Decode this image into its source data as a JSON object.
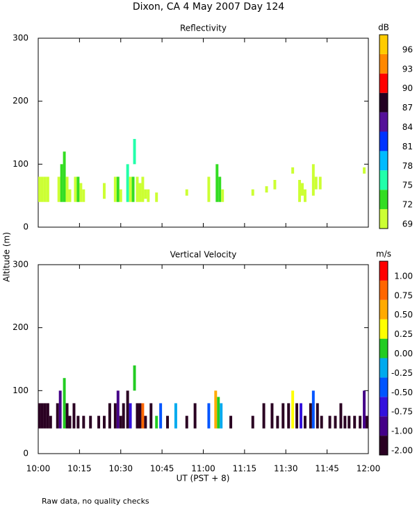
{
  "title": "Dixon, CA  4 May 2007  Day 124",
  "y_label": "Altitude (m)",
  "x_label": "UT  (PST + 8)",
  "note": "Raw data, no quality checks",
  "chart_data": [
    {
      "type": "time-height",
      "title": "Reflectivity",
      "colorbar_label": "dB",
      "colorbar_ticks": [
        69,
        72,
        75,
        78,
        81,
        84,
        87,
        90,
        93,
        96
      ],
      "colors": [
        "#ccff33",
        "#33dd22",
        "#22ffaa",
        "#00bbff",
        "#0033ff",
        "#551199",
        "#220022",
        "#ff0000",
        "#ff8800",
        "#ffcc00"
      ],
      "xlim": [
        0,
        120
      ],
      "xticks": [
        0,
        15,
        30,
        45,
        60,
        75,
        90,
        105,
        120
      ],
      "ylim": [
        0,
        300
      ],
      "yticks": [
        0,
        100,
        200,
        300
      ],
      "cells": [
        {
          "x": 0.5,
          "bottom": 40,
          "top": 80,
          "value": 70
        },
        {
          "x": 1.5,
          "bottom": 40,
          "top": 80,
          "value": 70
        },
        {
          "x": 2.5,
          "bottom": 40,
          "top": 80,
          "value": 71
        },
        {
          "x": 3.5,
          "bottom": 40,
          "top": 80,
          "value": 70
        },
        {
          "x": 7.5,
          "bottom": 40,
          "top": 80,
          "value": 70
        },
        {
          "x": 8.5,
          "bottom": 40,
          "top": 100,
          "value": 72
        },
        {
          "x": 9.5,
          "bottom": 40,
          "top": 120,
          "value": 73
        },
        {
          "x": 10.5,
          "bottom": 40,
          "top": 80,
          "value": 70
        },
        {
          "x": 11.5,
          "bottom": 40,
          "top": 60,
          "value": 70
        },
        {
          "x": 13.5,
          "bottom": 40,
          "top": 80,
          "value": 70
        },
        {
          "x": 14.5,
          "bottom": 40,
          "top": 80,
          "value": 72
        },
        {
          "x": 15.5,
          "bottom": 40,
          "top": 70,
          "value": 70
        },
        {
          "x": 16.5,
          "bottom": 40,
          "top": 60,
          "value": 70
        },
        {
          "x": 24,
          "bottom": 45,
          "top": 70,
          "value": 70
        },
        {
          "x": 28,
          "bottom": 40,
          "top": 80,
          "value": 71
        },
        {
          "x": 29,
          "bottom": 40,
          "top": 80,
          "value": 72
        },
        {
          "x": 30,
          "bottom": 40,
          "top": 60,
          "value": 70
        },
        {
          "x": 32.5,
          "bottom": 40,
          "top": 100,
          "value": 75
        },
        {
          "x": 33.5,
          "bottom": 40,
          "top": 80,
          "value": 70
        },
        {
          "x": 34.5,
          "bottom": 40,
          "top": 80,
          "value": 72
        },
        {
          "x": 35,
          "bottom": 100,
          "top": 140,
          "value": 76
        },
        {
          "x": 36,
          "bottom": 40,
          "top": 80,
          "value": 70
        },
        {
          "x": 37,
          "bottom": 40,
          "top": 70,
          "value": 70
        },
        {
          "x": 38,
          "bottom": 40,
          "top": 80,
          "value": 70
        },
        {
          "x": 39,
          "bottom": 45,
          "top": 60,
          "value": 70
        },
        {
          "x": 40,
          "bottom": 40,
          "top": 60,
          "value": 70
        },
        {
          "x": 43,
          "bottom": 40,
          "top": 55,
          "value": 70
        },
        {
          "x": 54,
          "bottom": 50,
          "top": 60,
          "value": 70
        },
        {
          "x": 62,
          "bottom": 40,
          "top": 80,
          "value": 71
        },
        {
          "x": 65,
          "bottom": 40,
          "top": 100,
          "value": 72
        },
        {
          "x": 66,
          "bottom": 40,
          "top": 80,
          "value": 72
        },
        {
          "x": 67,
          "bottom": 40,
          "top": 60,
          "value": 70
        },
        {
          "x": 78,
          "bottom": 50,
          "top": 60,
          "value": 70
        },
        {
          "x": 83,
          "bottom": 55,
          "top": 65,
          "value": 70
        },
        {
          "x": 86,
          "bottom": 60,
          "top": 75,
          "value": 70
        },
        {
          "x": 92.5,
          "bottom": 85,
          "top": 95,
          "value": 70
        },
        {
          "x": 95,
          "bottom": 40,
          "top": 75,
          "value": 70
        },
        {
          "x": 96,
          "bottom": 50,
          "top": 70,
          "value": 70
        },
        {
          "x": 97,
          "bottom": 40,
          "top": 60,
          "value": 70
        },
        {
          "x": 100,
          "bottom": 50,
          "top": 100,
          "value": 71
        },
        {
          "x": 101,
          "bottom": 60,
          "top": 80,
          "value": 70
        },
        {
          "x": 102.5,
          "bottom": 60,
          "top": 80,
          "value": 70
        },
        {
          "x": 118.5,
          "bottom": 85,
          "top": 95,
          "value": 70
        }
      ]
    },
    {
      "type": "time-height",
      "title": "Vertical Velocity",
      "colorbar_label": "m/s",
      "colorbar_ticks": [
        {
          "value": -2,
          "label": "-2.00"
        },
        {
          "value": -1,
          "label": "-1.00"
        },
        {
          "value": -0.75,
          "label": "-0.75"
        },
        {
          "value": -0.5,
          "label": "-0.50"
        },
        {
          "value": -0.25,
          "label": "-0.25"
        },
        {
          "value": 0,
          "label": "0.00"
        },
        {
          "value": 0.25,
          "label": "0.25"
        },
        {
          "value": 0.5,
          "label": "0.50"
        },
        {
          "value": 0.75,
          "label": "0.75"
        },
        {
          "value": 1,
          "label": "1.00"
        }
      ],
      "colors": [
        "#2a0022",
        "#440088",
        "#3311dd",
        "#0055ff",
        "#00aaee",
        "#22cc22",
        "#ffff00",
        "#ffaa00",
        "#ff6600",
        "#ff0000"
      ],
      "xlim": [
        0,
        120
      ],
      "xticks": [
        {
          "value": 0,
          "label": "10:00"
        },
        {
          "value": 15,
          "label": "10:15"
        },
        {
          "value": 30,
          "label": "10:30"
        },
        {
          "value": 45,
          "label": "10:45"
        },
        {
          "value": 60,
          "label": "11:00"
        },
        {
          "value": 75,
          "label": "11:15"
        },
        {
          "value": 90,
          "label": "11:30"
        },
        {
          "value": 105,
          "label": "11:45"
        },
        {
          "value": 120,
          "label": "12:00"
        }
      ],
      "ylim": [
        0,
        300
      ],
      "yticks": [
        0,
        100,
        200,
        300
      ],
      "cells": [
        {
          "x": 0.5,
          "bottom": 40,
          "top": 80,
          "value": -2
        },
        {
          "x": 1.5,
          "bottom": 40,
          "top": 80,
          "value": -2
        },
        {
          "x": 2.5,
          "bottom": 40,
          "top": 80,
          "value": -1.5
        },
        {
          "x": 3.5,
          "bottom": 40,
          "top": 80,
          "value": -2
        },
        {
          "x": 4.5,
          "bottom": 40,
          "top": 60,
          "value": -2
        },
        {
          "x": 7,
          "bottom": 40,
          "top": 80,
          "value": -2
        },
        {
          "x": 8,
          "bottom": 40,
          "top": 100,
          "value": -0.9
        },
        {
          "x": 9.5,
          "bottom": 40,
          "top": 120,
          "value": 0.1
        },
        {
          "x": 10.5,
          "bottom": 40,
          "top": 80,
          "value": -2
        },
        {
          "x": 11.5,
          "bottom": 40,
          "top": 60,
          "value": -2
        },
        {
          "x": 13,
          "bottom": 40,
          "top": 80,
          "value": -2
        },
        {
          "x": 14.5,
          "bottom": 40,
          "top": 60,
          "value": -2
        },
        {
          "x": 16.5,
          "bottom": 40,
          "top": 60,
          "value": -2
        },
        {
          "x": 19,
          "bottom": 40,
          "top": 60,
          "value": -2
        },
        {
          "x": 22,
          "bottom": 40,
          "top": 60,
          "value": -2
        },
        {
          "x": 24,
          "bottom": 40,
          "top": 60,
          "value": -2
        },
        {
          "x": 26,
          "bottom": 40,
          "top": 80,
          "value": -2
        },
        {
          "x": 28,
          "bottom": 40,
          "top": 80,
          "value": -2
        },
        {
          "x": 29,
          "bottom": 40,
          "top": 100,
          "value": -0.9
        },
        {
          "x": 30,
          "bottom": 40,
          "top": 60,
          "value": -2
        },
        {
          "x": 31,
          "bottom": 40,
          "top": 80,
          "value": -2
        },
        {
          "x": 32.5,
          "bottom": 40,
          "top": 100,
          "value": -2
        },
        {
          "x": 33.5,
          "bottom": 40,
          "top": 80,
          "value": -0.6
        },
        {
          "x": 35,
          "bottom": 100,
          "top": 140,
          "value": 0.1
        },
        {
          "x": 36,
          "bottom": 40,
          "top": 80,
          "value": -2
        },
        {
          "x": 37,
          "bottom": 40,
          "top": 80,
          "value": -2
        },
        {
          "x": 38,
          "bottom": 40,
          "top": 80,
          "value": 0.8
        },
        {
          "x": 39,
          "bottom": 40,
          "top": 60,
          "value": -2
        },
        {
          "x": 41,
          "bottom": 40,
          "top": 80,
          "value": -2
        },
        {
          "x": 43,
          "bottom": 40,
          "top": 60,
          "value": 0.1
        },
        {
          "x": 44.5,
          "bottom": 40,
          "top": 80,
          "value": -0.4
        },
        {
          "x": 47,
          "bottom": 40,
          "top": 60,
          "value": -2
        },
        {
          "x": 50,
          "bottom": 40,
          "top": 80,
          "value": -0.2
        },
        {
          "x": 54,
          "bottom": 40,
          "top": 60,
          "value": -2
        },
        {
          "x": 57,
          "bottom": 40,
          "top": 80,
          "value": -2
        },
        {
          "x": 62,
          "bottom": 40,
          "top": 80,
          "value": -0.3
        },
        {
          "x": 64.5,
          "bottom": 40,
          "top": 100,
          "value": 0.6
        },
        {
          "x": 65.5,
          "bottom": 40,
          "top": 90,
          "value": 0.1
        },
        {
          "x": 66.5,
          "bottom": 40,
          "top": 80,
          "value": -0.2
        },
        {
          "x": 70,
          "bottom": 40,
          "top": 60,
          "value": -2
        },
        {
          "x": 78,
          "bottom": 40,
          "top": 60,
          "value": -2
        },
        {
          "x": 82,
          "bottom": 40,
          "top": 80,
          "value": -2
        },
        {
          "x": 85,
          "bottom": 40,
          "top": 80,
          "value": -2
        },
        {
          "x": 87,
          "bottom": 40,
          "top": 60,
          "value": -2
        },
        {
          "x": 89,
          "bottom": 40,
          "top": 80,
          "value": -2
        },
        {
          "x": 91,
          "bottom": 40,
          "top": 80,
          "value": -2
        },
        {
          "x": 92.5,
          "bottom": 40,
          "top": 100,
          "value": 0.3
        },
        {
          "x": 94,
          "bottom": 40,
          "top": 80,
          "value": -2
        },
        {
          "x": 95.5,
          "bottom": 40,
          "top": 80,
          "value": -0.6
        },
        {
          "x": 97,
          "bottom": 40,
          "top": 60,
          "value": -2
        },
        {
          "x": 99,
          "bottom": 40,
          "top": 80,
          "value": -2
        },
        {
          "x": 100,
          "bottom": 40,
          "top": 100,
          "value": -0.3
        },
        {
          "x": 101.5,
          "bottom": 40,
          "top": 80,
          "value": -2
        },
        {
          "x": 103,
          "bottom": 40,
          "top": 60,
          "value": -2
        },
        {
          "x": 106,
          "bottom": 40,
          "top": 60,
          "value": -2
        },
        {
          "x": 108,
          "bottom": 40,
          "top": 60,
          "value": -2
        },
        {
          "x": 110,
          "bottom": 40,
          "top": 80,
          "value": -2
        },
        {
          "x": 111.5,
          "bottom": 40,
          "top": 60,
          "value": -2
        },
        {
          "x": 113,
          "bottom": 40,
          "top": 60,
          "value": -2
        },
        {
          "x": 115,
          "bottom": 40,
          "top": 60,
          "value": -2
        },
        {
          "x": 117,
          "bottom": 40,
          "top": 60,
          "value": -2
        },
        {
          "x": 118.5,
          "bottom": 40,
          "top": 100,
          "value": -0.9
        },
        {
          "x": 119.5,
          "bottom": 40,
          "top": 60,
          "value": -2
        }
      ]
    }
  ]
}
